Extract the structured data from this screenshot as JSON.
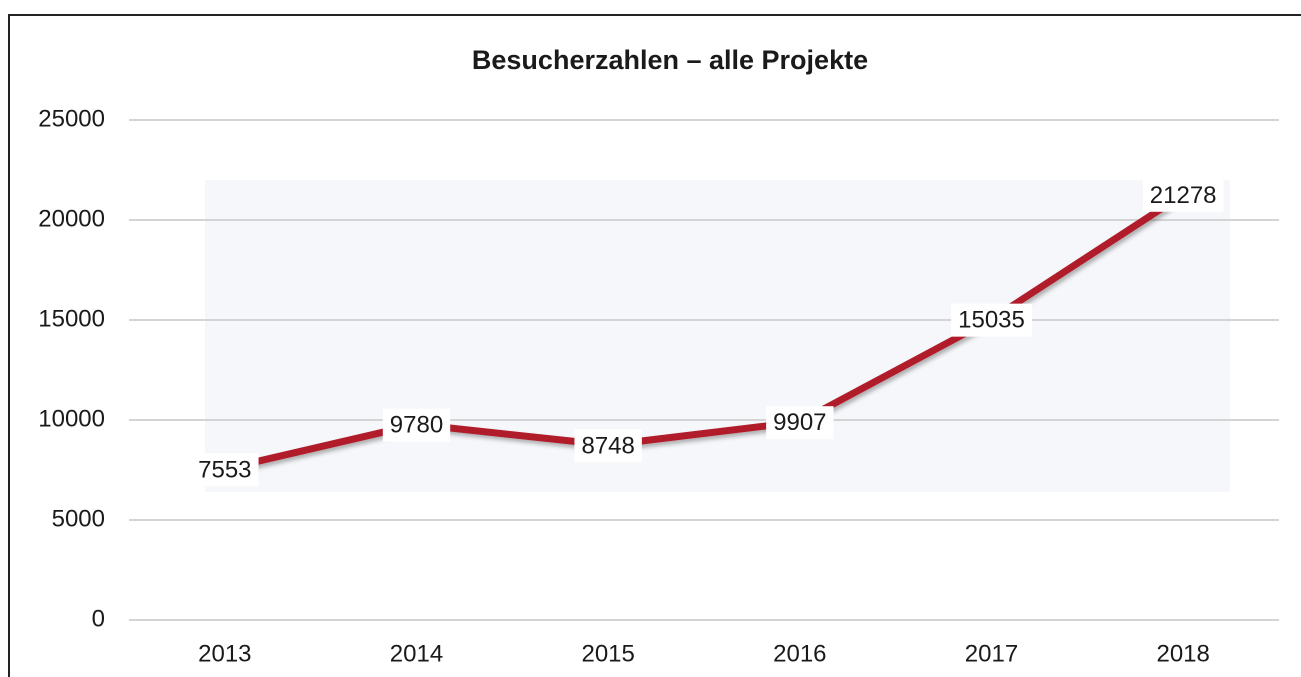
{
  "chart_data": {
    "type": "line",
    "title": "Besucherzahlen – alle Projekte",
    "categories": [
      "2013",
      "2014",
      "2015",
      "2016",
      "2017",
      "2018"
    ],
    "series": [
      {
        "name": "Besucherzahlen",
        "color": "#b01e2a",
        "values": [
          7553,
          9780,
          8748,
          9907,
          15035,
          21278
        ]
      }
    ],
    "ylim": [
      0,
      25000
    ],
    "yticks": [
      0,
      5000,
      10000,
      15000,
      20000,
      25000
    ],
    "grid": true
  }
}
